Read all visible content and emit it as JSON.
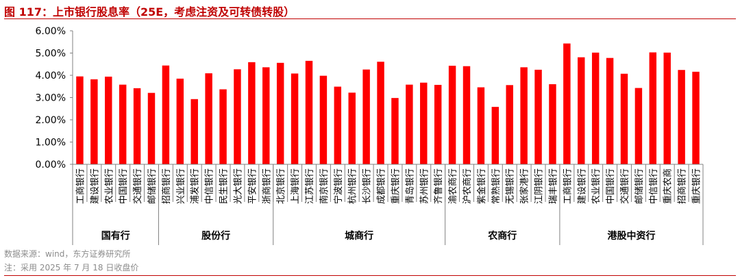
{
  "title": "图 117：上市银行股息率（25E，考虑注资及可转债转股）",
  "source": "数据来源：wind，东方证券研究所",
  "note": "注：采用  2025 年 7 月 18 日收盘价",
  "colors": {
    "bar": "#ff0000",
    "title": "#c00000",
    "axis": "#808080"
  },
  "chart_data": {
    "type": "bar",
    "ylim": [
      0,
      0.06
    ],
    "yticks": [
      0,
      0.01,
      0.02,
      0.03,
      0.04,
      0.05,
      0.06
    ],
    "ytick_labels": [
      "0.00%",
      "1.00%",
      "2.00%",
      "3.00%",
      "4.00%",
      "5.00%",
      "6.00%"
    ],
    "grid": false,
    "legend": "none",
    "groups": [
      {
        "name": "国有行",
        "categories": [
          "工商银行",
          "建设银行",
          "农业银行",
          "中国银行",
          "交通银行",
          "邮储银行"
        ],
        "values": [
          0.0395,
          0.0382,
          0.0394,
          0.0358,
          0.0342,
          0.0321
        ]
      },
      {
        "name": "股份行",
        "categories": [
          "招商银行",
          "兴业银行",
          "浦发银行",
          "中信银行",
          "民生银行",
          "光大银行",
          "平安银行",
          "浙商银行"
        ],
        "values": [
          0.0444,
          0.0385,
          0.0293,
          0.0409,
          0.0337,
          0.0427,
          0.0459,
          0.0436
        ]
      },
      {
        "name": "城商行",
        "categories": [
          "北京银行",
          "上海银行",
          "江苏银行",
          "南京银行",
          "宁波银行",
          "杭州银行",
          "长沙银行",
          "成都银行",
          "重庆银行",
          "青岛银行",
          "苏州银行",
          "齐鲁银行"
        ],
        "values": [
          0.0456,
          0.0408,
          0.0465,
          0.0398,
          0.0349,
          0.0322,
          0.0426,
          0.0461,
          0.0298,
          0.0358,
          0.0367,
          0.0357
        ]
      },
      {
        "name": "农商行",
        "categories": [
          "渝农商行",
          "沪农商行",
          "紫金银行",
          "常熟银行",
          "无锡银行",
          "张家港行",
          "江阴银行",
          "瑞丰银行"
        ],
        "values": [
          0.0443,
          0.0441,
          0.0346,
          0.0258,
          0.0356,
          0.0436,
          0.0425,
          0.036
        ]
      },
      {
        "name": "港股中资行",
        "categories": [
          "工商银行",
          "建设银行",
          "农业银行",
          "中国银行",
          "交通银行",
          "邮储银行",
          "中信银行",
          "重庆农商",
          "招商银行",
          "重庆银行"
        ],
        "values": [
          0.0543,
          0.0481,
          0.0502,
          0.0478,
          0.0407,
          0.0343,
          0.0503,
          0.0502,
          0.0424,
          0.0416
        ]
      }
    ]
  }
}
